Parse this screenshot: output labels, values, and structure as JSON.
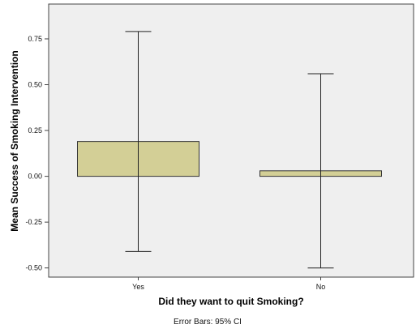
{
  "chart_data": {
    "type": "bar",
    "xlabel": "Did they want to quit Smoking?",
    "ylabel": "Mean Success of Smoking Intervention",
    "categories": [
      "Yes",
      "No"
    ],
    "values": [
      0.19,
      0.03
    ],
    "error_bars": [
      {
        "category": "Yes",
        "low": -0.41,
        "high": 0.79
      },
      {
        "category": "No",
        "low": -0.5,
        "high": 0.56
      }
    ],
    "ylim": [
      -0.55,
      0.94
    ],
    "yticks": [
      "0.75",
      "0.50",
      "0.25",
      "0.00",
      "-0.25",
      "-0.50"
    ],
    "ytick_values": [
      0.75,
      0.5,
      0.25,
      0,
      -0.25,
      -0.5
    ],
    "grid": false,
    "footnote": "Error Bars: 95% CI",
    "colors": {
      "plot_background": "#efefef",
      "bar_fill": "#d3cf96",
      "bar_stroke": "#333333"
    }
  }
}
